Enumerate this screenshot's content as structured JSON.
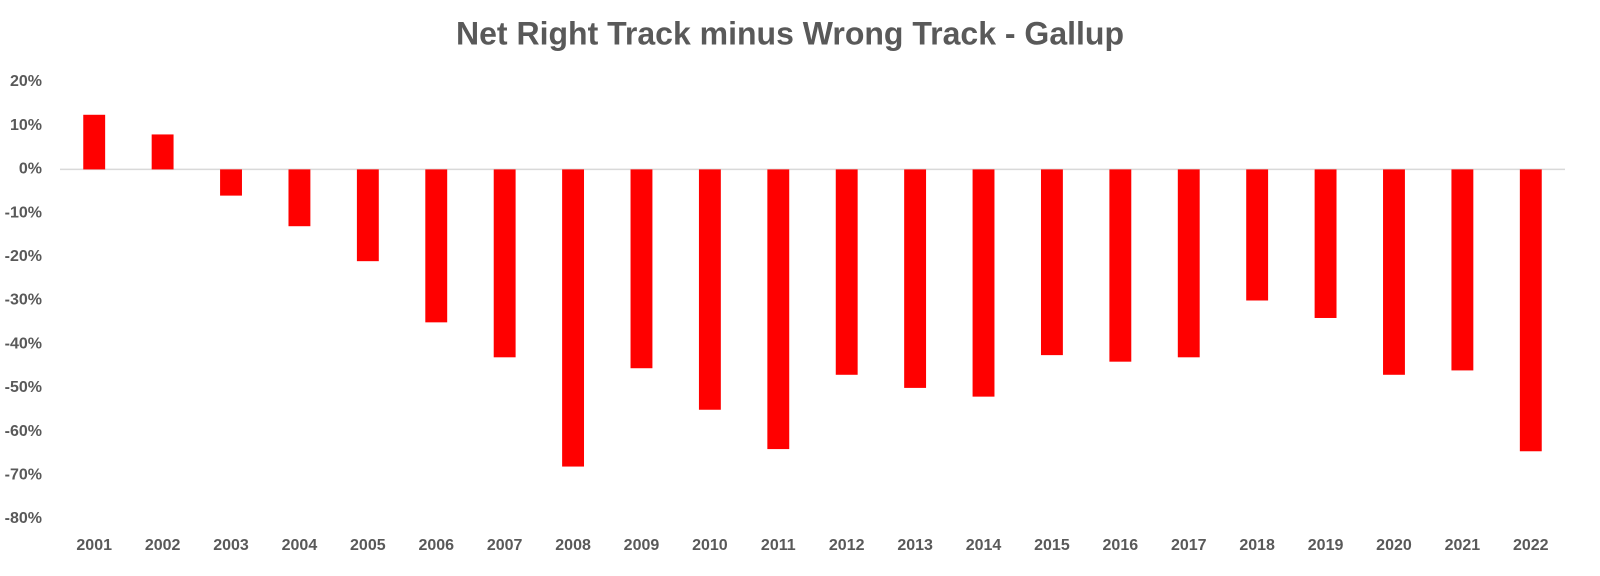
{
  "chart_data": {
    "type": "bar",
    "title": "Net Right Track minus Wrong Track - Gallup",
    "categories": [
      "2001",
      "2002",
      "2003",
      "2004",
      "2005",
      "2006",
      "2007",
      "2008",
      "2009",
      "2010",
      "2011",
      "2012",
      "2013",
      "2014",
      "2015",
      "2016",
      "2017",
      "2018",
      "2019",
      "2020",
      "2021",
      "2022"
    ],
    "values": [
      12.5,
      8,
      -6,
      -13,
      -21,
      -35,
      -43,
      -68,
      -45.5,
      -55,
      -64,
      -47,
      -50,
      -52,
      -42.5,
      -44,
      -43,
      -30,
      -34,
      -47,
      -46,
      -64.5
    ],
    "color": "#ff0000",
    "ylim": [
      -80,
      20
    ],
    "yticks": [
      {
        "value": 20,
        "label": "20%"
      },
      {
        "value": 10,
        "label": "10%"
      },
      {
        "value": 0,
        "label": "0%"
      },
      {
        "value": -10,
        "label": "-10%"
      },
      {
        "value": -20,
        "label": "-20%"
      },
      {
        "value": -30,
        "label": "-30%"
      },
      {
        "value": -40,
        "label": "-40%"
      },
      {
        "value": -50,
        "label": "-50%"
      },
      {
        "value": -60,
        "label": "-60%"
      },
      {
        "value": -70,
        "label": "-70%"
      },
      {
        "value": -80,
        "label": "-80%"
      }
    ],
    "grid": false
  }
}
